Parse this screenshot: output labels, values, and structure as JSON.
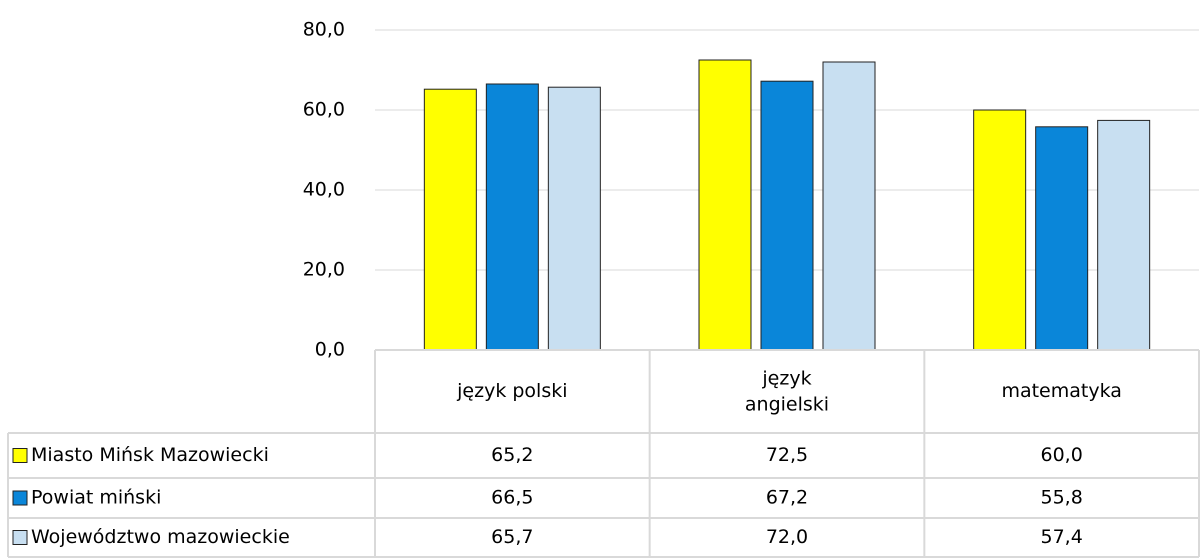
{
  "chart_data": {
    "type": "bar",
    "categories": [
      "język polski",
      "język angielski",
      "matematyka"
    ],
    "series": [
      {
        "name": "Miasto Mińsk Mazowiecki",
        "color": "#ffff00",
        "values": [
          65.2,
          72.5,
          60.0
        ],
        "value_labels": [
          "65,2",
          "72,5",
          "60,0"
        ]
      },
      {
        "name": "Powiat miński",
        "color": "#0a86d9",
        "values": [
          66.5,
          67.2,
          55.8
        ],
        "value_labels": [
          "66,5",
          "67,2",
          "55,8"
        ]
      },
      {
        "name": "Województwo mazowieckie",
        "color": "#c8dff1",
        "values": [
          65.7,
          72.0,
          57.4
        ],
        "value_labels": [
          "65,7",
          "72,0",
          "57,4"
        ]
      }
    ],
    "ylim": [
      0,
      80
    ],
    "yticks": [
      {
        "value": 0,
        "label": "0,0"
      },
      {
        "value": 20,
        "label": "20,0"
      },
      {
        "value": 40,
        "label": "40,0"
      },
      {
        "value": 60,
        "label": "60,0"
      },
      {
        "value": 80,
        "label": "80,0"
      }
    ],
    "grid": true
  }
}
